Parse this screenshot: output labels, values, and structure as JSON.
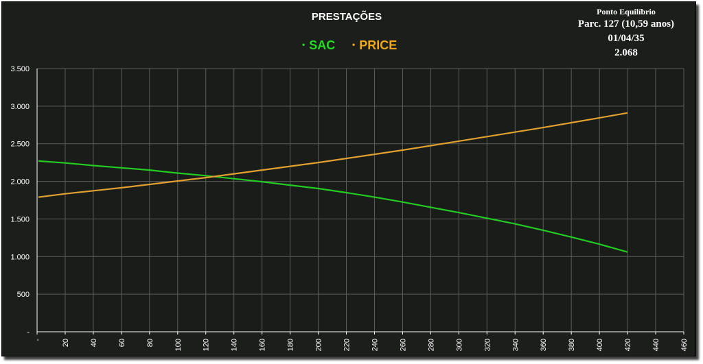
{
  "chart_data": {
    "type": "line",
    "title": "PRESTAÇÕES",
    "xlim": [
      0,
      460
    ],
    "ylim": [
      0,
      3500
    ],
    "x_ticks": [
      {
        "v": 0,
        "label": "-"
      },
      {
        "v": 20,
        "label": "20"
      },
      {
        "v": 40,
        "label": "40"
      },
      {
        "v": 60,
        "label": "60"
      },
      {
        "v": 80,
        "label": "80"
      },
      {
        "v": 100,
        "label": "100"
      },
      {
        "v": 120,
        "label": "120"
      },
      {
        "v": 140,
        "label": "140"
      },
      {
        "v": 160,
        "label": "160"
      },
      {
        "v": 180,
        "label": "180"
      },
      {
        "v": 200,
        "label": "200"
      },
      {
        "v": 220,
        "label": "220"
      },
      {
        "v": 240,
        "label": "240"
      },
      {
        "v": 260,
        "label": "260"
      },
      {
        "v": 280,
        "label": "280"
      },
      {
        "v": 300,
        "label": "300"
      },
      {
        "v": 320,
        "label": "320"
      },
      {
        "v": 340,
        "label": "340"
      },
      {
        "v": 360,
        "label": "360"
      },
      {
        "v": 380,
        "label": "380"
      },
      {
        "v": 400,
        "label": "400"
      },
      {
        "v": 420,
        "label": "420"
      },
      {
        "v": 440,
        "label": "440"
      },
      {
        "v": 460,
        "label": "460"
      }
    ],
    "y_ticks": [
      {
        "v": 0,
        "label": "-"
      },
      {
        "v": 500,
        "label": "500"
      },
      {
        "v": 1000,
        "label": "1.000"
      },
      {
        "v": 1500,
        "label": "1.500"
      },
      {
        "v": 2000,
        "label": "2.000"
      },
      {
        "v": 2500,
        "label": "2.500"
      },
      {
        "v": 3000,
        "label": "3.000"
      },
      {
        "v": 3500,
        "label": "3.500"
      }
    ],
    "grid": true,
    "legend_position": "top-center",
    "series": [
      {
        "name": "SAC",
        "color": "#22cc22",
        "points": [
          [
            1,
            2270
          ],
          [
            20,
            2245
          ],
          [
            40,
            2210
          ],
          [
            60,
            2180
          ],
          [
            80,
            2150
          ],
          [
            100,
            2110
          ],
          [
            120,
            2075
          ],
          [
            140,
            2035
          ],
          [
            160,
            1995
          ],
          [
            180,
            1950
          ],
          [
            200,
            1905
          ],
          [
            220,
            1850
          ],
          [
            240,
            1790
          ],
          [
            260,
            1725
          ],
          [
            280,
            1655
          ],
          [
            300,
            1585
          ],
          [
            320,
            1510
          ],
          [
            340,
            1435
          ],
          [
            360,
            1350
          ],
          [
            380,
            1260
          ],
          [
            400,
            1165
          ],
          [
            420,
            1060
          ]
        ]
      },
      {
        "name": "PRICE",
        "color": "#e0a030",
        "points": [
          [
            1,
            1790
          ],
          [
            20,
            1835
          ],
          [
            40,
            1875
          ],
          [
            60,
            1915
          ],
          [
            80,
            1960
          ],
          [
            100,
            2005
          ],
          [
            120,
            2050
          ],
          [
            140,
            2100
          ],
          [
            160,
            2150
          ],
          [
            180,
            2200
          ],
          [
            200,
            2250
          ],
          [
            220,
            2305
          ],
          [
            240,
            2360
          ],
          [
            260,
            2415
          ],
          [
            280,
            2475
          ],
          [
            300,
            2535
          ],
          [
            320,
            2595
          ],
          [
            340,
            2655
          ],
          [
            360,
            2715
          ],
          [
            380,
            2780
          ],
          [
            400,
            2845
          ],
          [
            420,
            2910
          ]
        ]
      }
    ],
    "annotation": {
      "title": "Ponto Equilíbrio",
      "lines": [
        "Parc. 127 (10,59 anos)",
        "01/04/35",
        "2.068"
      ]
    }
  }
}
